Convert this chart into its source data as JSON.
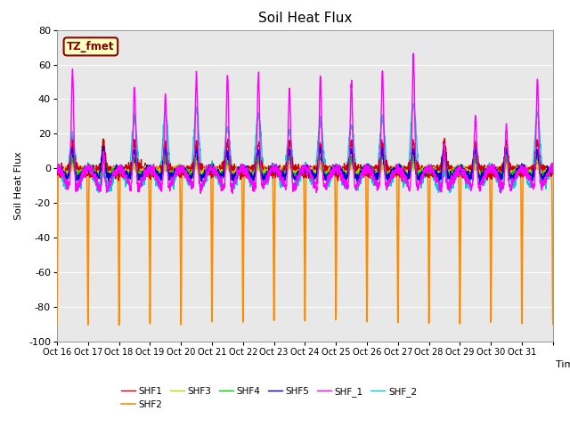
{
  "title": "Soil Heat Flux",
  "xlabel": "Time",
  "ylabel": "Soil Heat Flux",
  "ylim": [
    -100,
    80
  ],
  "ytick_values": [
    -100,
    -80,
    -60,
    -40,
    -20,
    0,
    20,
    40,
    60,
    80
  ],
  "xtick_labels": [
    "Oct 16",
    "Oct 17",
    "Oct 18",
    "Oct 19",
    "Oct 20",
    "Oct 21",
    "Oct 22",
    "Oct 23",
    "Oct 24",
    "Oct 25",
    "Oct 26",
    "Oct 27",
    "Oct 28",
    "Oct 29",
    "Oct 30",
    "Oct 31"
  ],
  "annotation_text": "TZ_fmet",
  "annotation_color": "#8B0000",
  "annotation_bg": "#FFFFC0",
  "series_colors": {
    "SHF1": "#CC0000",
    "SHF2": "#FF8C00",
    "SHF3": "#CCCC00",
    "SHF4": "#00CC00",
    "SHF5": "#0000CC",
    "SHF_1": "#FF00FF",
    "SHF_2": "#00CCCC"
  },
  "bg_color": "#E8E8E8",
  "fig_bg": "#FFFFFF",
  "legend_order": [
    "SHF1",
    "SHF2",
    "SHF3",
    "SHF4",
    "SHF5",
    "SHF_1",
    "SHF_2"
  ]
}
